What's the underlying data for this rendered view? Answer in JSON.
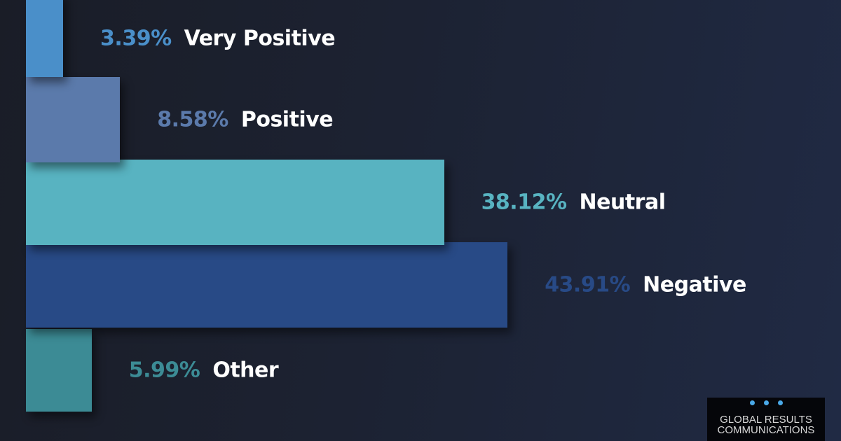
{
  "chart_data": {
    "type": "bar",
    "orientation": "horizontal",
    "categories": [
      "Very Positive",
      "Positive",
      "Neutral",
      "Negative",
      "Other"
    ],
    "values": [
      3.39,
      8.58,
      38.12,
      43.91,
      5.99
    ],
    "value_labels": [
      "3.39%",
      "8.58%",
      "38.12%",
      "43.91%",
      "5.99%"
    ],
    "colors": [
      "#4a8fc9",
      "#5b7aab",
      "#58b3c1",
      "#284a86",
      "#3c8b95"
    ],
    "title": "",
    "xlabel": "",
    "ylabel": "",
    "grid": false,
    "legend": "none"
  },
  "logo": {
    "line1": "GLOBAL RESULTS",
    "line2": "COMMUNICATIONS",
    "dot_color": "#4aa9e8"
  }
}
